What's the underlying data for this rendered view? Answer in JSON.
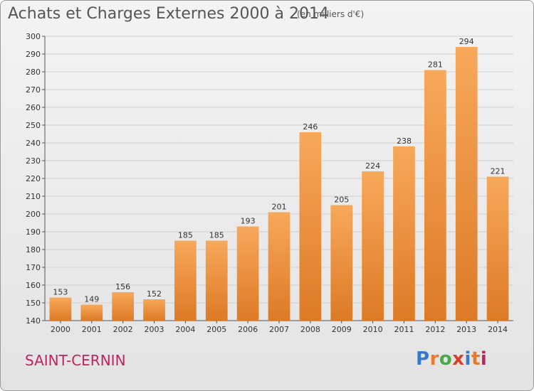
{
  "title": "Achats et Charges Externes 2000 à 2014",
  "subtitle": "(en milliers d'€)",
  "commune": "SAINT-CERNIN",
  "logo": {
    "text": "Proxiti",
    "letter_colors": [
      "#3a78c9",
      "#e8782a",
      "#4aa84a",
      "#d6402b",
      "#3a78c9",
      "#e8782a",
      "#c0245c"
    ]
  },
  "colors": {
    "bar_light": "#f7a85a",
    "bar_dark": "#dd7a26",
    "grid": "#cfcfcf"
  },
  "chart_data": {
    "type": "bar",
    "categories": [
      "2000",
      "2001",
      "2002",
      "2003",
      "2004",
      "2005",
      "2006",
      "2007",
      "2008",
      "2009",
      "2010",
      "2011",
      "2012",
      "2013",
      "2014"
    ],
    "values": [
      153,
      149,
      156,
      152,
      185,
      185,
      193,
      201,
      246,
      205,
      224,
      238,
      281,
      294,
      221
    ],
    "ylim": [
      140,
      300
    ],
    "yticks": [
      140,
      150,
      160,
      170,
      180,
      190,
      200,
      210,
      220,
      230,
      240,
      250,
      260,
      270,
      280,
      290,
      300
    ],
    "grid": true
  }
}
